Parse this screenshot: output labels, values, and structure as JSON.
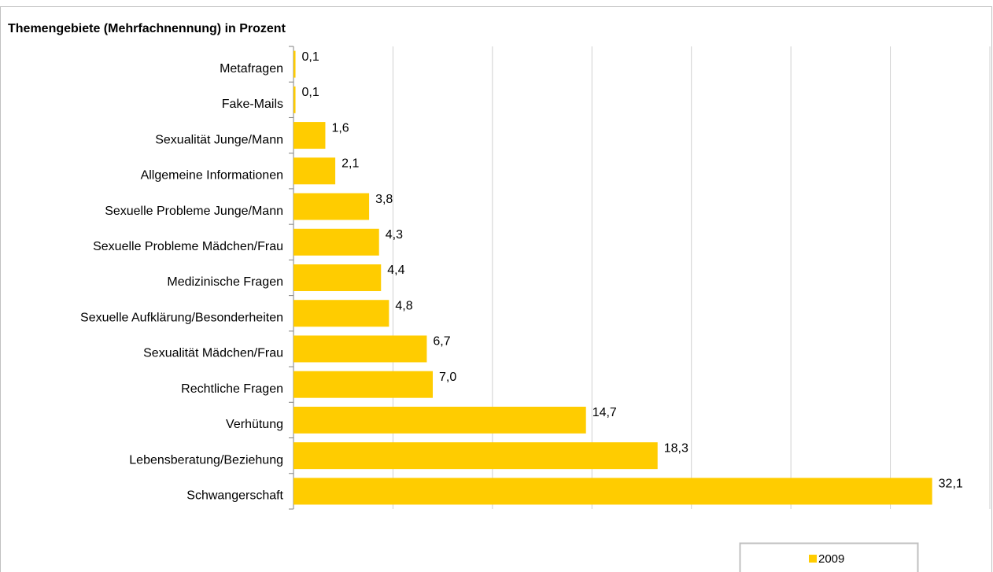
{
  "chart_data": {
    "type": "bar",
    "orientation": "horizontal",
    "title": "Themengebiete (Mehrfachnennung) in Prozent",
    "categories": [
      "Metafragen",
      "Fake-Mails",
      "Sexualität Junge/Mann",
      "Allgemeine Informationen",
      "Sexuelle Probleme Junge/Mann",
      "Sexuelle Probleme Mädchen/Frau",
      "Medizinische Fragen",
      "Sexuelle Aufklärung/Besonderheiten",
      "Sexualität Mädchen/Frau",
      "Rechtliche Fragen",
      "Verhütung",
      "Lebensberatung/Beziehung",
      "Schwangerschaft"
    ],
    "series": [
      {
        "name": "2009",
        "color": "#ffcc00",
        "values": [
          0.1,
          0.1,
          1.6,
          2.1,
          3.8,
          4.3,
          4.4,
          4.8,
          6.7,
          7.0,
          14.7,
          18.3,
          32.1
        ],
        "value_labels": [
          "0,1",
          "0,1",
          "1,6",
          "2,1",
          "3,8",
          "4,3",
          "4,4",
          "4,8",
          "6,7",
          "7,0",
          "14,7",
          "18,3",
          "32,1"
        ]
      }
    ],
    "xlim": [
      0,
      35
    ],
    "xticks": [
      0,
      5,
      10,
      15,
      20,
      25,
      30,
      35
    ],
    "grid": true,
    "legend": "bottom-right"
  }
}
